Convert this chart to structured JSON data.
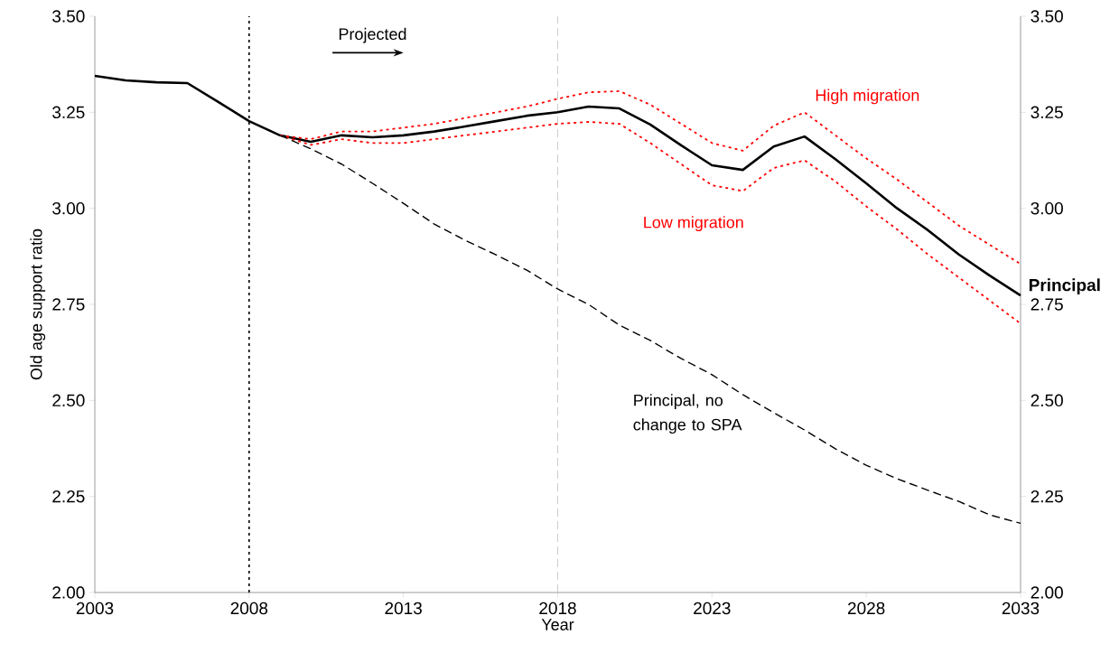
{
  "chart_data": {
    "type": "line",
    "xlabel": "Year",
    "ylabel": "Old age support ratio",
    "x": [
      2003,
      2004,
      2005,
      2006,
      2007,
      2008,
      2009,
      2010,
      2011,
      2012,
      2013,
      2014,
      2015,
      2016,
      2017,
      2018,
      2019,
      2020,
      2021,
      2022,
      2023,
      2024,
      2025,
      2026,
      2027,
      2028,
      2029,
      2030,
      2031,
      2032,
      2033
    ],
    "series": [
      {
        "name": "Principal",
        "color": "#000000",
        "line_style": "solid",
        "values": [
          3.345,
          3.333,
          3.328,
          3.326,
          3.277,
          3.227,
          3.19,
          3.173,
          3.19,
          3.185,
          3.19,
          3.2,
          3.213,
          3.227,
          3.241,
          3.25,
          3.265,
          3.26,
          3.218,
          3.164,
          3.112,
          3.1,
          3.161,
          3.187,
          3.128,
          3.065,
          3.0,
          2.943,
          2.88,
          2.825,
          2.773
        ]
      },
      {
        "name": "High migration",
        "color": "#ff0000",
        "line_style": "dotted",
        "values": [
          null,
          null,
          null,
          null,
          null,
          null,
          3.19,
          3.18,
          3.2,
          3.2,
          3.21,
          3.22,
          3.235,
          3.25,
          3.265,
          3.285,
          3.302,
          3.305,
          3.27,
          3.22,
          3.17,
          3.15,
          3.215,
          3.25,
          3.19,
          3.13,
          3.075,
          3.015,
          2.955,
          2.905,
          2.855
        ]
      },
      {
        "name": "Low migration",
        "color": "#ff0000",
        "line_style": "dotted",
        "values": [
          null,
          null,
          null,
          null,
          null,
          null,
          3.19,
          3.165,
          3.18,
          3.17,
          3.17,
          3.18,
          3.19,
          3.2,
          3.21,
          3.22,
          3.225,
          3.22,
          3.17,
          3.115,
          3.06,
          3.045,
          3.105,
          3.125,
          3.07,
          3.005,
          2.945,
          2.88,
          2.82,
          2.76,
          2.7
        ]
      },
      {
        "name": "Principal, no change to SPA",
        "color": "#000000",
        "line_style": "dashed",
        "values": [
          null,
          null,
          null,
          null,
          null,
          null,
          3.19,
          3.155,
          3.115,
          3.065,
          3.013,
          2.959,
          2.917,
          2.879,
          2.839,
          2.79,
          2.75,
          2.696,
          2.656,
          2.609,
          2.567,
          2.515,
          2.468,
          2.423,
          2.374,
          2.331,
          2.296,
          2.266,
          2.237,
          2.202,
          2.18
        ]
      }
    ],
    "xlim": [
      2003,
      2033
    ],
    "xticks": [
      2003,
      2008,
      2013,
      2018,
      2023,
      2028,
      2033
    ],
    "ylim": [
      2.0,
      3.5
    ],
    "yticks": [
      {
        "value": 2.0,
        "label": "2.00"
      },
      {
        "value": 2.25,
        "label": "2.25"
      },
      {
        "value": 2.5,
        "label": "2.50"
      },
      {
        "value": 2.75,
        "label": "2.75"
      },
      {
        "value": 3.0,
        "label": "3.00"
      },
      {
        "value": 3.25,
        "label": "3.25"
      },
      {
        "value": 3.5,
        "label": "3.50"
      }
    ],
    "y2lim": [
      2.0,
      3.5
    ],
    "y2ticks": [
      {
        "value": 2.0,
        "label": "2.00"
      },
      {
        "value": 2.25,
        "label": "2.25"
      },
      {
        "value": 2.5,
        "label": "2.50"
      },
      {
        "value": 2.75,
        "label": "2.75"
      },
      {
        "value": 3.0,
        "label": "3.00"
      },
      {
        "value": 3.25,
        "label": "3.25"
      },
      {
        "value": 3.5,
        "label": "3.50"
      }
    ],
    "ref_lines": [
      {
        "axis": "x",
        "value": 2008,
        "color": "#000000",
        "line_style": "dotted"
      },
      {
        "axis": "x",
        "value": 2018,
        "color": "#bfbfbf",
        "line_style": "dashed"
      }
    ],
    "annotations": [
      "Projected"
    ],
    "marker": "none"
  }
}
